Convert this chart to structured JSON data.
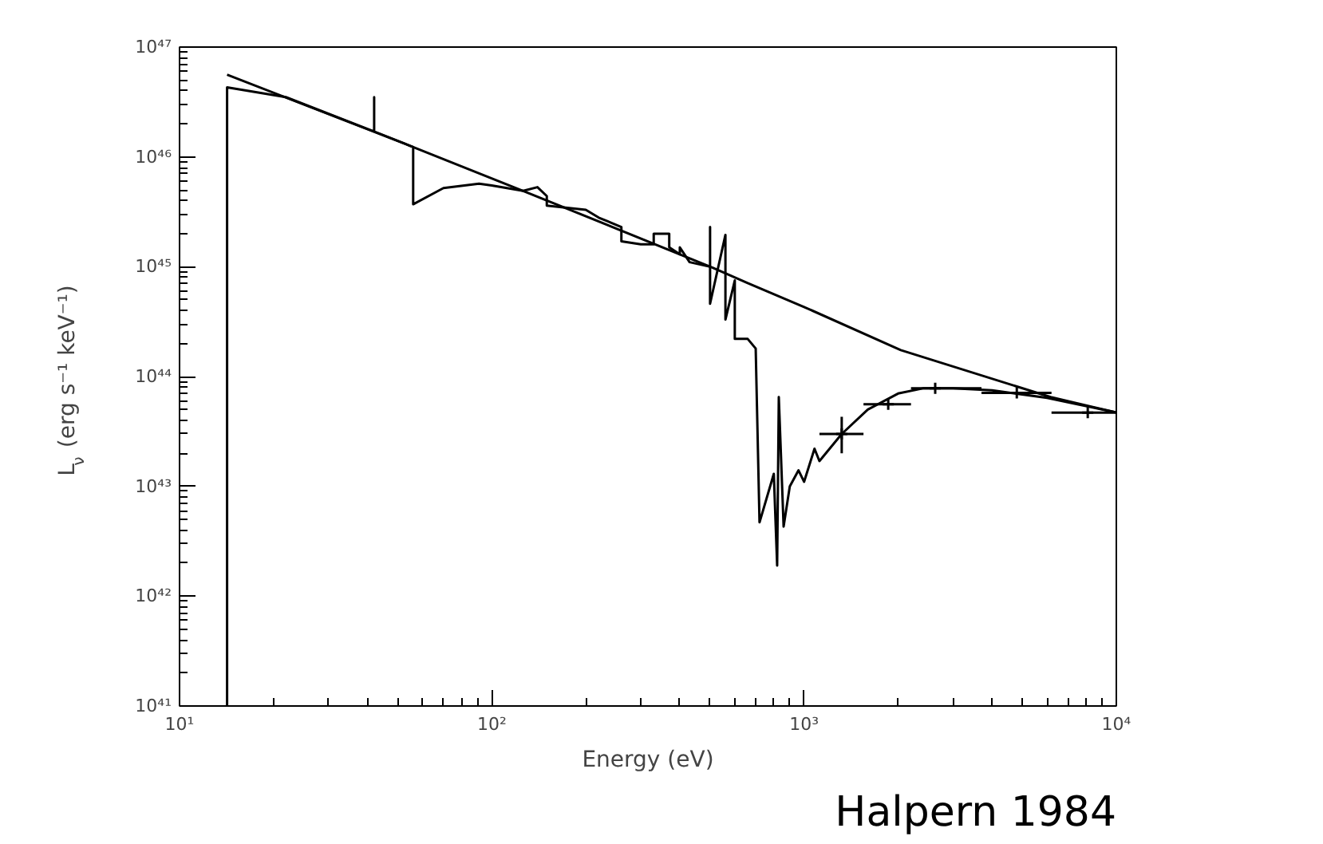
{
  "chart_data": {
    "type": "line",
    "xlabel": "Energy (eV)",
    "ylabel": "L$_{ν}$ (erg s⁻¹ keV⁻¹)",
    "annotations": [
      "Halpern 1984"
    ],
    "log": "xy",
    "grid": false,
    "xlim": [
      10,
      10000
    ],
    "ylim": [
      1e+41,
      1e+47
    ],
    "xticks": [
      {
        "value": 10,
        "label": "10¹"
      },
      {
        "value": 100,
        "label": "10²"
      },
      {
        "value": 1000,
        "label": "10³"
      },
      {
        "value": 10000,
        "label": "10⁴"
      }
    ],
    "yticks": [
      {
        "value": 1e+41,
        "label": "10⁴¹"
      },
      {
        "value": 1e+42,
        "label": "10⁴²"
      },
      {
        "value": 1e+43,
        "label": "10⁴³"
      },
      {
        "value": 1e+44,
        "label": "10⁴⁴"
      },
      {
        "value": 1e+45,
        "label": "10⁴⁵"
      },
      {
        "value": 1e+46,
        "label": "10⁴⁶"
      },
      {
        "value": 1e+47,
        "label": "10⁴⁷"
      }
    ],
    "series": [
      {
        "color": "#000000",
        "x": [
          14.2,
          56,
          126,
          510,
          660,
          1000,
          2040,
          6160,
          10000
        ],
        "values": [
          5.6e+46,
          1.23e+46,
          4.9e+45,
          9.8e+44,
          7.1e+44,
          4.3e+44,
          1.74e+44,
          6.5e+43,
          4.7e+43
        ]
      },
      {
        "color": "#000000",
        "x": [
          14.2,
          14.2,
          21.9,
          42,
          42,
          42,
          56,
          56,
          70,
          91,
          100,
          126,
          140,
          150,
          150,
          200,
          220,
          260,
          260,
          300,
          330,
          330,
          370,
          370,
          400,
          400,
          430,
          500,
          500,
          500,
          560,
          560,
          600,
          600,
          660,
          700,
          720,
          800,
          820,
          830,
          860,
          900,
          960,
          1000,
          1080,
          1120,
          1320,
          1600,
          2000,
          2400,
          3000,
          4000,
          6000,
          10000
        ],
        "values": [
          1e+41,
          4.3e+46,
          3.5e+46,
          1.7e+46,
          3.5e+46,
          1.7e+46,
          1.23e+46,
          3.7e+45,
          5.2e+45,
          5.7e+45,
          5.5e+45,
          4.9e+45,
          5.3e+45,
          4.4e+45,
          3.6e+45,
          3.3e+45,
          2.8e+45,
          2.3e+45,
          1.7e+45,
          1.6e+45,
          1.6e+45,
          2e+45,
          2e+45,
          1.5e+45,
          1.3e+45,
          1.5e+45,
          1.1e+45,
          1e+45,
          2.3e+45,
          4.6e+44,
          1.95e+45,
          3.3e+44,
          7.5e+44,
          2.2e+44,
          2.2e+44,
          1.8e+44,
          4.7e+42,
          1.3e+43,
          1.9e+42,
          6.5e+43,
          4.3e+42,
          1e+43,
          1.4e+43,
          1.1e+43,
          2.2e+43,
          1.7e+43,
          3e+43,
          5e+43,
          7e+43,
          7.8e+43,
          7.8e+43,
          7.5e+43,
          6.4e+43,
          4.7e+43
        ]
      },
      {
        "type": "scatter",
        "marker": "cross",
        "color": "#000000",
        "x": [
          1320,
          1860,
          2630,
          4800,
          8100
        ],
        "values": [
          3e+43,
          5.6e+43,
          7.8e+43,
          7.1e+43,
          4.7e+43
        ],
        "xerrors": [
          [
            1120,
            1550
          ],
          [
            1550,
            2200
          ],
          [
            2200,
            3700
          ],
          [
            3700,
            6200
          ],
          [
            6200,
            10000
          ]
        ],
        "errors": [
          [
            2e+43,
            4.3e+43
          ],
          null,
          null,
          null,
          null
        ]
      }
    ]
  }
}
